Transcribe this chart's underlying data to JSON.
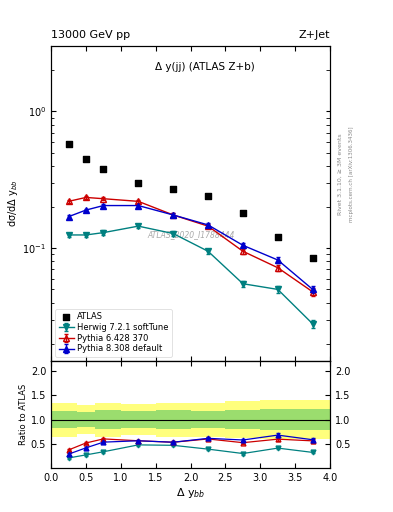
{
  "title_left": "13000 GeV pp",
  "title_right": "Z+Jet",
  "annotation": "Δ y(jj) (ATLAS Z+b)",
  "watermark": "ATLAS_2020_I1788444",
  "ylabel_main": "dσ/dΔ y$_{bb}$",
  "ylabel_ratio": "Ratio to ATLAS",
  "xlabel": "Δ y$_{bb}$",
  "right_label": "Rivet 3.1.10, ≥ 3M events",
  "right_label2": "mcplots.cern.ch [arXiv:1306.3436]",
  "atlas_x": [
    0.25,
    0.5,
    0.75,
    1.25,
    1.75,
    2.25,
    2.75,
    3.25,
    3.75
  ],
  "atlas_y": [
    0.58,
    0.45,
    0.38,
    0.3,
    0.27,
    0.24,
    0.18,
    0.12,
    0.085
  ],
  "herwig_x": [
    0.25,
    0.5,
    0.75,
    1.25,
    1.75,
    2.25,
    2.75,
    3.25,
    3.75
  ],
  "herwig_y": [
    0.125,
    0.125,
    0.13,
    0.145,
    0.128,
    0.095,
    0.055,
    0.05,
    0.028
  ],
  "herwig_yerr": [
    0.004,
    0.004,
    0.005,
    0.005,
    0.005,
    0.004,
    0.003,
    0.003,
    0.002
  ],
  "pythia6_x": [
    0.25,
    0.5,
    0.75,
    1.25,
    1.75,
    2.25,
    2.75,
    3.25,
    3.75
  ],
  "pythia6_y": [
    0.22,
    0.235,
    0.23,
    0.22,
    0.175,
    0.145,
    0.095,
    0.072,
    0.048
  ],
  "pythia6_yerr": [
    0.006,
    0.006,
    0.006,
    0.006,
    0.006,
    0.005,
    0.004,
    0.004,
    0.003
  ],
  "pythia8_x": [
    0.25,
    0.5,
    0.75,
    1.25,
    1.75,
    2.25,
    2.75,
    3.25,
    3.75
  ],
  "pythia8_y": [
    0.17,
    0.19,
    0.205,
    0.205,
    0.175,
    0.148,
    0.105,
    0.082,
    0.05
  ],
  "pythia8_yerr": [
    0.005,
    0.005,
    0.006,
    0.006,
    0.006,
    0.005,
    0.004,
    0.004,
    0.003
  ],
  "herwig_color": "#008080",
  "pythia6_color": "#cc0000",
  "pythia8_color": "#0000cc",
  "atlas_color": "#000000",
  "ratio_x": [
    0.25,
    0.5,
    0.75,
    1.25,
    1.75,
    2.25,
    2.75,
    3.25,
    3.75
  ],
  "ratio_herwig_y": [
    0.215,
    0.278,
    0.342,
    0.483,
    0.474,
    0.396,
    0.306,
    0.417,
    0.329
  ],
  "ratio_pythia6_y": [
    0.379,
    0.522,
    0.605,
    0.567,
    0.537,
    0.604,
    0.528,
    0.6,
    0.565
  ],
  "ratio_pythia8_y": [
    0.293,
    0.422,
    0.539,
    0.567,
    0.537,
    0.617,
    0.583,
    0.683,
    0.588
  ],
  "ratio_herwig_yerr": [
    0.02,
    0.02,
    0.02,
    0.02,
    0.02,
    0.02,
    0.02,
    0.02,
    0.02
  ],
  "ratio_pythia6_yerr": [
    0.02,
    0.02,
    0.02,
    0.02,
    0.02,
    0.03,
    0.03,
    0.04,
    0.04
  ],
  "ratio_pythia8_yerr": [
    0.02,
    0.02,
    0.02,
    0.02,
    0.02,
    0.03,
    0.03,
    0.04,
    0.04
  ],
  "band_edges": [
    0.0,
    0.375,
    0.625,
    1.0,
    1.5,
    2.0,
    2.5,
    3.0,
    3.5,
    4.0
  ],
  "band_green_lo": [
    0.82,
    0.85,
    0.8,
    0.82,
    0.8,
    0.82,
    0.8,
    0.78,
    0.78
  ],
  "band_green_hi": [
    1.18,
    1.15,
    1.2,
    1.18,
    1.2,
    1.18,
    1.2,
    1.22,
    1.22
  ],
  "band_yellow_lo": [
    0.65,
    0.7,
    0.65,
    0.68,
    0.65,
    0.65,
    0.62,
    0.6,
    0.6
  ],
  "band_yellow_hi": [
    1.35,
    1.3,
    1.35,
    1.32,
    1.35,
    1.35,
    1.38,
    1.4,
    1.4
  ],
  "xlim": [
    0,
    4
  ],
  "ylim_main": [
    0.015,
    3.0
  ],
  "ylim_ratio": [
    0.0,
    2.2
  ],
  "ratio_yticks": [
    0.5,
    1.0,
    1.5,
    2.0
  ]
}
